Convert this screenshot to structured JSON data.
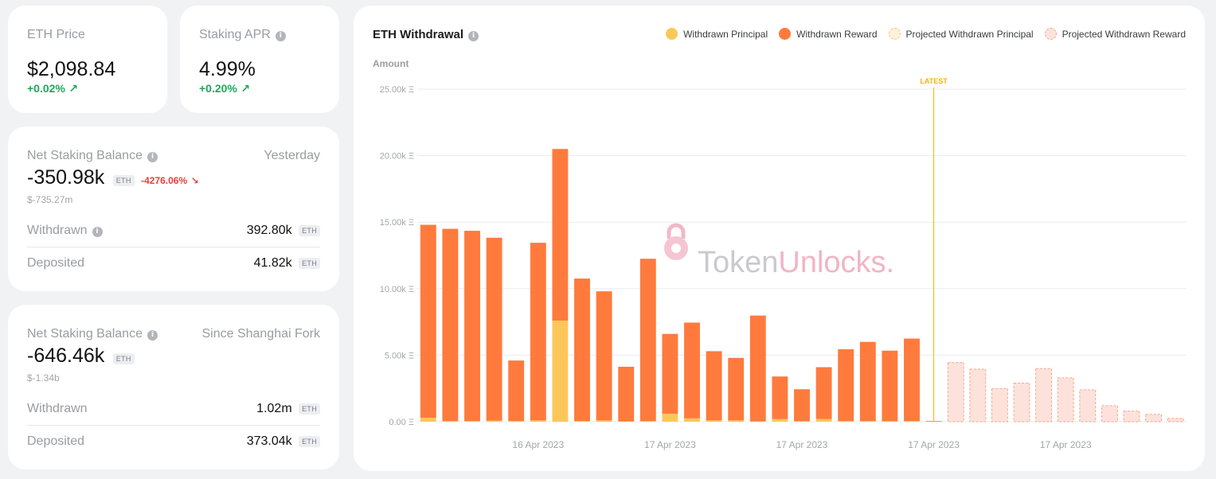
{
  "eth_price": {
    "label": "ETH Price",
    "value": "$2,098.84",
    "change": "+0.02%",
    "change_icon": "arrow-up-right-icon"
  },
  "staking_apr": {
    "label": "Staking APR",
    "value": "4.99%",
    "change": "+0.20%",
    "change_icon": "arrow-up-right-icon"
  },
  "net_yesterday": {
    "label": "Net Staking Balance",
    "period": "Yesterday",
    "value": "-350.98k",
    "unit": "ETH",
    "change": "-4276.06%",
    "usd": "$-735.27m",
    "withdrawn_label": "Withdrawn",
    "withdrawn_value": "392.80k",
    "deposited_label": "Deposited",
    "deposited_value": "41.82k"
  },
  "net_shanghai": {
    "label": "Net Staking Balance",
    "period": "Since Shanghai Fork",
    "value": "-646.46k",
    "unit": "ETH",
    "usd": "$-1.34b",
    "withdrawn_label": "Withdrawn",
    "withdrawn_value": "1.02m",
    "deposited_label": "Deposited",
    "deposited_value": "373.04k"
  },
  "colors": {
    "principal": "#fcc75a",
    "reward": "#ff7a3d",
    "projected_principal_fill": "#fff1d8",
    "projected_reward_fill": "#fde2dc",
    "projected_border": "#f7a78c",
    "latest": "#f4b400",
    "positive": "#1fa85a",
    "negative": "#e8413b"
  },
  "watermark": "TokenUnlocks.",
  "chart_data": {
    "type": "bar",
    "title": "ETH Withdrawal",
    "ylabel": "Amount",
    "ylim": [
      0,
      25000
    ],
    "y_ticks": [
      "0.00 Ξ",
      "5.00k Ξ",
      "10.00k Ξ",
      "15.00k Ξ",
      "20.00k Ξ",
      "25.00k Ξ"
    ],
    "x_tick_labels": [
      "16 Apr 2023",
      "17 Apr 2023",
      "17 Apr 2023",
      "17 Apr 2023",
      "17 Apr 2023"
    ],
    "marker_label": "LATEST",
    "legend": [
      "Withdrawn Principal",
      "Withdrawn Reward",
      "Projected Withdrawn Principal",
      "Projected Withdrawn Reward"
    ],
    "series": [
      {
        "name": "Withdrawn Principal",
        "values": [
          300,
          50,
          50,
          80,
          50,
          100,
          7600,
          60,
          100,
          30,
          50,
          600,
          250,
          100,
          100,
          30,
          200,
          40,
          200,
          50,
          50,
          40,
          50,
          0
        ]
      },
      {
        "name": "Withdrawn Reward",
        "values": [
          14500,
          14450,
          14300,
          13750,
          4550,
          13350,
          12900,
          10700,
          9700,
          4100,
          12200,
          6000,
          7200,
          5200,
          4700,
          7950,
          3200,
          2400,
          3900,
          5400,
          5950,
          5300,
          6200,
          50
        ]
      },
      {
        "name": "Projected Withdrawn Principal",
        "values": [
          0,
          0,
          0,
          0,
          0,
          0,
          0,
          0,
          0,
          0,
          0,
          0,
          0,
          0,
          0,
          0,
          0,
          0,
          0,
          0,
          0,
          0,
          0,
          0,
          0,
          0,
          0,
          0,
          0,
          0,
          0,
          0,
          0,
          0,
          0
        ]
      },
      {
        "name": "Projected Withdrawn Reward",
        "values": [
          0,
          0,
          0,
          0,
          0,
          0,
          0,
          0,
          0,
          0,
          0,
          0,
          0,
          0,
          0,
          0,
          0,
          0,
          0,
          0,
          0,
          0,
          0,
          0,
          4450,
          3950,
          2500,
          2900,
          4000,
          3300,
          2400,
          1200,
          800,
          550,
          250
        ]
      }
    ]
  }
}
